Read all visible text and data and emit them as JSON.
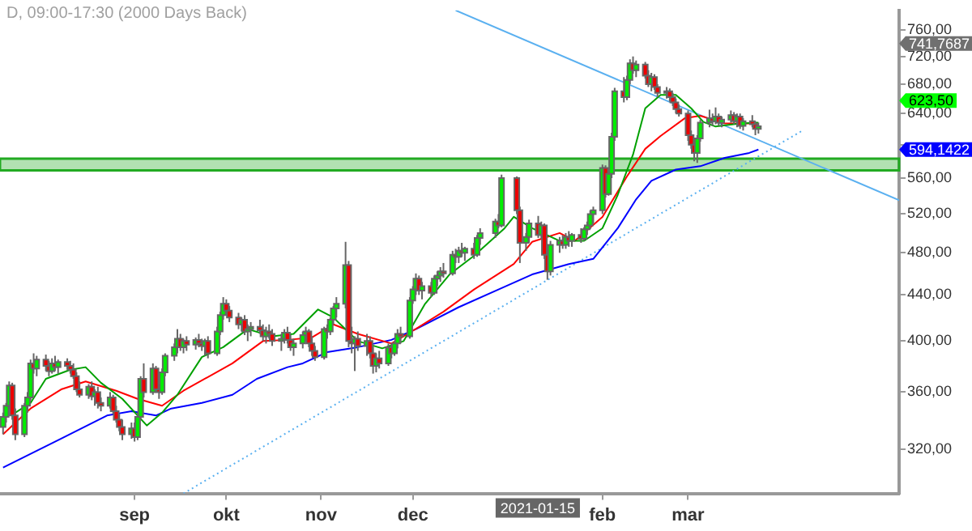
{
  "chart_data": {
    "type": "candlestick",
    "title": "D, 09:00-17:30 (2000 Days Back)",
    "log": true,
    "marker": "none",
    "grid": false,
    "legend": false,
    "xlim": [
      "2020-07-19",
      "2021-05-09"
    ],
    "xticks": [
      {
        "value": "2020-09-01",
        "label": "sep"
      },
      {
        "value": "2020-10-01",
        "label": "okt"
      },
      {
        "value": "2020-11-01",
        "label": "nov"
      },
      {
        "value": "2020-12-01",
        "label": "dec"
      },
      {
        "value": "2021-02-01",
        "label": "feb"
      },
      {
        "value": "2021-03-01",
        "label": "mar"
      }
    ],
    "ylim": [
      292,
      792
    ],
    "yticks": [
      {
        "value": 320,
        "label": "320,00"
      },
      {
        "value": 360,
        "label": "360,00"
      },
      {
        "value": 400,
        "label": "400,00"
      },
      {
        "value": 440,
        "label": "440,00"
      },
      {
        "value": 480,
        "label": "480,00"
      },
      {
        "value": 520,
        "label": "520,00"
      },
      {
        "value": 560,
        "label": "560,00"
      },
      {
        "value": 600,
        "label": null
      },
      {
        "value": 640,
        "label": "640,00"
      },
      {
        "value": 680,
        "label": "680,00"
      },
      {
        "value": 720,
        "label": "720,00"
      },
      {
        "value": 760,
        "label": "760,00"
      }
    ],
    "x": [
      "2020-07-20",
      "2020-07-21",
      "2020-07-22",
      "2020-07-23",
      "2020-07-24",
      "2020-07-27",
      "2020-07-28",
      "2020-07-29",
      "2020-07-30",
      "2020-07-31",
      "2020-08-03",
      "2020-08-04",
      "2020-08-05",
      "2020-08-06",
      "2020-08-07",
      "2020-08-10",
      "2020-08-11",
      "2020-08-12",
      "2020-08-13",
      "2020-08-14",
      "2020-08-17",
      "2020-08-18",
      "2020-08-19",
      "2020-08-20",
      "2020-08-21",
      "2020-08-24",
      "2020-08-25",
      "2020-08-26",
      "2020-08-27",
      "2020-08-28",
      "2020-08-31",
      "2020-09-01",
      "2020-09-02",
      "2020-09-03",
      "2020-09-04",
      "2020-09-07",
      "2020-09-08",
      "2020-09-09",
      "2020-09-10",
      "2020-09-11",
      "2020-09-14",
      "2020-09-15",
      "2020-09-16",
      "2020-09-17",
      "2020-09-18",
      "2020-09-21",
      "2020-09-22",
      "2020-09-23",
      "2020-09-24",
      "2020-09-25",
      "2020-09-28",
      "2020-09-29",
      "2020-09-30",
      "2020-10-01",
      "2020-10-02",
      "2020-10-05",
      "2020-10-06",
      "2020-10-07",
      "2020-10-08",
      "2020-10-09",
      "2020-10-12",
      "2020-10-13",
      "2020-10-14",
      "2020-10-15",
      "2020-10-16",
      "2020-10-19",
      "2020-10-20",
      "2020-10-21",
      "2020-10-22",
      "2020-10-23",
      "2020-10-26",
      "2020-10-27",
      "2020-10-28",
      "2020-10-29",
      "2020-10-30",
      "2020-11-02",
      "2020-11-03",
      "2020-11-04",
      "2020-11-05",
      "2020-11-06",
      "2020-11-09",
      "2020-11-10",
      "2020-11-11",
      "2020-11-12",
      "2020-11-13",
      "2020-11-16",
      "2020-11-17",
      "2020-11-18",
      "2020-11-19",
      "2020-11-20",
      "2020-11-23",
      "2020-11-24",
      "2020-11-25",
      "2020-11-26",
      "2020-11-27",
      "2020-11-30",
      "2020-12-01",
      "2020-12-02",
      "2020-12-03",
      "2020-12-04",
      "2020-12-07",
      "2020-12-08",
      "2020-12-09",
      "2020-12-10",
      "2020-12-11",
      "2020-12-14",
      "2020-12-15",
      "2020-12-16",
      "2020-12-17",
      "2020-12-18",
      "2020-12-21",
      "2020-12-22",
      "2020-12-23",
      "2020-12-28",
      "2020-12-29",
      "2020-12-30",
      "2021-01-04",
      "2021-01-05",
      "2021-01-07",
      "2021-01-08",
      "2021-01-11",
      "2021-01-12",
      "2021-01-13",
      "2021-01-14",
      "2021-01-15",
      "2021-01-18",
      "2021-01-19",
      "2021-01-20",
      "2021-01-21",
      "2021-01-22",
      "2021-01-25",
      "2021-01-26",
      "2021-01-27",
      "2021-01-28",
      "2021-01-29",
      "2021-02-01",
      "2021-02-02",
      "2021-02-03",
      "2021-02-04",
      "2021-02-05",
      "2021-02-08",
      "2021-02-09",
      "2021-02-10",
      "2021-02-11",
      "2021-02-12",
      "2021-02-15",
      "2021-02-16",
      "2021-02-17",
      "2021-02-18",
      "2021-02-19",
      "2021-02-22",
      "2021-02-23",
      "2021-02-24",
      "2021-02-25",
      "2021-02-26",
      "2021-03-01",
      "2021-03-02",
      "2021-03-03",
      "2021-03-04",
      "2021-03-05",
      "2021-03-08",
      "2021-03-09",
      "2021-03-10",
      "2021-03-11",
      "2021-03-12",
      "2021-03-15",
      "2021-03-16",
      "2021-03-17",
      "2021-03-18",
      "2021-03-19",
      "2021-03-22",
      "2021-03-23",
      "2021-03-24"
    ],
    "ohlc": [
      [
        335,
        345,
        330,
        342
      ],
      [
        342,
        352,
        338,
        350
      ],
      [
        350,
        368,
        348,
        365
      ],
      [
        365,
        367,
        340,
        343
      ],
      [
        343,
        348,
        326,
        330
      ],
      [
        330,
        352,
        328,
        350
      ],
      [
        350,
        360,
        345,
        356
      ],
      [
        356,
        385,
        354,
        382
      ],
      [
        382,
        390,
        374,
        378
      ],
      [
        378,
        388,
        372,
        385
      ],
      [
        385,
        389,
        376,
        380
      ],
      [
        380,
        384,
        372,
        376
      ],
      [
        376,
        386,
        374,
        382
      ],
      [
        382,
        388,
        376,
        379
      ],
      [
        379,
        385,
        374,
        383
      ],
      [
        383,
        386,
        377,
        380
      ],
      [
        380,
        384,
        374,
        377
      ],
      [
        377,
        382,
        370,
        372
      ],
      [
        372,
        375,
        360,
        362
      ],
      [
        362,
        368,
        356,
        358
      ],
      [
        358,
        366,
        355,
        364
      ],
      [
        364,
        368,
        354,
        357
      ],
      [
        357,
        362,
        350,
        360
      ],
      [
        360,
        364,
        348,
        352
      ],
      [
        352,
        356,
        346,
        350
      ],
      [
        350,
        360,
        348,
        356
      ],
      [
        356,
        358,
        344,
        346
      ],
      [
        346,
        350,
        338,
        340
      ],
      [
        340,
        344,
        332,
        335
      ],
      [
        335,
        340,
        326,
        330
      ],
      [
        330,
        338,
        327,
        334
      ],
      [
        334,
        338,
        325,
        328
      ],
      [
        328,
        345,
        326,
        342
      ],
      [
        342,
        372,
        340,
        370
      ],
      [
        370,
        382,
        356,
        360
      ],
      [
        360,
        382,
        358,
        378
      ],
      [
        378,
        380,
        360,
        362
      ],
      [
        362,
        366,
        355,
        360
      ],
      [
        360,
        378,
        358,
        375
      ],
      [
        375,
        390,
        372,
        388
      ],
      [
        388,
        398,
        384,
        395
      ],
      [
        395,
        410,
        390,
        402
      ],
      [
        402,
        406,
        392,
        395
      ],
      [
        395,
        402,
        390,
        400
      ],
      [
        400,
        404,
        392,
        397
      ],
      [
        397,
        403,
        393,
        401
      ],
      [
        401,
        406,
        395,
        398
      ],
      [
        398,
        402,
        392,
        396
      ],
      [
        396,
        402,
        388,
        400
      ],
      [
        400,
        404,
        386,
        390
      ],
      [
        390,
        412,
        388,
        408
      ],
      [
        408,
        425,
        405,
        422
      ],
      [
        422,
        438,
        418,
        432
      ],
      [
        432,
        436,
        422,
        426
      ],
      [
        426,
        430,
        416,
        420
      ],
      [
        420,
        424,
        410,
        414
      ],
      [
        414,
        420,
        408,
        418
      ],
      [
        418,
        422,
        405,
        408
      ],
      [
        408,
        414,
        400,
        410
      ],
      [
        410,
        416,
        404,
        412
      ],
      [
        412,
        418,
        406,
        409
      ],
      [
        409,
        414,
        400,
        404
      ],
      [
        404,
        412,
        398,
        408
      ],
      [
        408,
        414,
        402,
        406
      ],
      [
        406,
        410,
        396,
        400
      ],
      [
        400,
        406,
        392,
        402
      ],
      [
        402,
        410,
        398,
        407
      ],
      [
        407,
        412,
        398,
        401
      ],
      [
        401,
        405,
        392,
        395
      ],
      [
        395,
        402,
        388,
        398
      ],
      [
        398,
        408,
        394,
        405
      ],
      [
        405,
        412,
        400,
        408
      ],
      [
        408,
        410,
        395,
        398
      ],
      [
        398,
        404,
        388,
        392
      ],
      [
        392,
        396,
        384,
        387
      ],
      [
        387,
        412,
        385,
        410
      ],
      [
        410,
        414,
        402,
        408
      ],
      [
        408,
        420,
        405,
        418
      ],
      [
        418,
        430,
        414,
        428
      ],
      [
        428,
        438,
        420,
        432
      ],
      [
        432,
        491,
        428,
        468
      ],
      [
        468,
        472,
        395,
        400
      ],
      [
        400,
        412,
        390,
        398
      ],
      [
        398,
        404,
        376,
        402
      ],
      [
        402,
        408,
        392,
        396
      ],
      [
        396,
        406,
        388,
        400
      ],
      [
        400,
        404,
        386,
        390
      ],
      [
        390,
        396,
        374,
        380
      ],
      [
        380,
        390,
        375,
        386
      ],
      [
        386,
        392,
        378,
        382
      ],
      [
        382,
        398,
        380,
        395
      ],
      [
        395,
        398,
        386,
        390
      ],
      [
        390,
        400,
        388,
        398
      ],
      [
        398,
        410,
        394,
        406
      ],
      [
        406,
        412,
        398,
        404
      ],
      [
        404,
        438,
        402,
        435
      ],
      [
        435,
        448,
        432,
        445
      ],
      [
        445,
        460,
        440,
        455
      ],
      [
        455,
        458,
        440,
        444
      ],
      [
        444,
        452,
        436,
        448
      ],
      [
        448,
        452,
        438,
        442
      ],
      [
        442,
        458,
        440,
        455
      ],
      [
        455,
        462,
        448,
        458
      ],
      [
        458,
        466,
        452,
        462
      ],
      [
        462,
        470,
        456,
        460
      ],
      [
        460,
        482,
        458,
        478
      ],
      [
        478,
        484,
        470,
        476
      ],
      [
        476,
        486,
        470,
        482
      ],
      [
        482,
        490,
        476,
        480
      ],
      [
        480,
        486,
        472,
        484
      ],
      [
        484,
        490,
        474,
        478
      ],
      [
        478,
        498,
        476,
        495
      ],
      [
        495,
        505,
        488,
        500
      ],
      [
        500,
        515,
        495,
        512
      ],
      [
        512,
        520,
        505,
        508
      ],
      [
        508,
        564,
        506,
        560
      ],
      [
        560,
        562,
        520,
        524
      ],
      [
        524,
        528,
        470,
        490
      ],
      [
        490,
        500,
        482,
        496
      ],
      [
        496,
        514,
        490,
        510
      ],
      [
        510,
        518,
        495,
        498
      ],
      [
        498,
        512,
        494,
        508
      ],
      [
        508,
        510,
        474,
        478
      ],
      [
        478,
        482,
        454,
        462
      ],
      [
        462,
        492,
        458,
        488
      ],
      [
        488,
        496,
        480,
        492
      ],
      [
        492,
        498,
        484,
        488
      ],
      [
        488,
        500,
        484,
        496
      ],
      [
        496,
        502,
        486,
        492
      ],
      [
        492,
        500,
        486,
        498
      ],
      [
        498,
        505,
        490,
        494
      ],
      [
        494,
        506,
        492,
        504
      ],
      [
        504,
        512,
        498,
        508
      ],
      [
        508,
        524,
        504,
        520
      ],
      [
        520,
        528,
        510,
        524
      ],
      [
        524,
        576,
        520,
        572
      ],
      [
        572,
        575,
        538,
        542
      ],
      [
        542,
        568,
        540,
        565
      ],
      [
        565,
        615,
        560,
        610
      ],
      [
        610,
        675,
        605,
        670
      ],
      [
        670,
        690,
        655,
        662
      ],
      [
        662,
        692,
        658,
        686
      ],
      [
        686,
        716,
        680,
        710
      ],
      [
        710,
        720,
        695,
        700
      ],
      [
        700,
        714,
        690,
        708
      ],
      [
        708,
        712,
        688,
        692
      ],
      [
        692,
        700,
        676,
        680
      ],
      [
        680,
        696,
        670,
        690
      ],
      [
        690,
        694,
        672,
        676
      ],
      [
        676,
        680,
        662,
        668
      ],
      [
        668,
        676,
        660,
        670
      ],
      [
        670,
        674,
        656,
        662
      ],
      [
        662,
        668,
        650,
        655
      ],
      [
        655,
        660,
        640,
        646
      ],
      [
        646,
        652,
        636,
        640
      ],
      [
        640,
        644,
        605,
        612
      ],
      [
        612,
        618,
        595,
        600
      ],
      [
        600,
        604,
        580,
        590
      ],
      [
        590,
        612,
        578,
        608
      ],
      [
        608,
        632,
        604,
        628
      ],
      [
        628,
        645,
        622,
        634
      ],
      [
        634,
        640,
        624,
        630
      ],
      [
        630,
        648,
        626,
        636
      ],
      [
        636,
        640,
        624,
        628
      ],
      [
        628,
        636,
        622,
        632
      ],
      [
        632,
        644,
        628,
        638
      ],
      [
        638,
        642,
        626,
        630
      ],
      [
        630,
        640,
        622,
        636
      ],
      [
        636,
        640,
        620,
        624
      ],
      [
        624,
        634,
        618,
        630
      ],
      [
        630,
        638,
        622,
        626
      ],
      [
        626,
        630,
        612,
        620
      ],
      [
        620,
        628,
        614,
        623.5
      ]
    ],
    "series": [
      {
        "type": "line",
        "color": "#00a000",
        "line_style": "solid",
        "x": [
          "2020-07-24",
          "2020-07-29",
          "2020-08-03",
          "2020-08-11",
          "2020-08-16",
          "2020-08-21",
          "2020-08-28",
          "2020-09-05",
          "2020-09-10",
          "2020-09-15",
          "2020-09-23",
          "2020-09-30",
          "2020-10-08",
          "2020-10-16",
          "2020-10-23",
          "2020-10-31",
          "2020-11-05",
          "2020-11-13",
          "2020-11-21",
          "2020-11-28",
          "2020-12-05",
          "2020-12-13",
          "2020-12-21",
          "2020-12-31",
          "2021-01-03",
          "2021-01-09",
          "2021-01-18",
          "2021-01-26",
          "2021-02-01",
          "2021-02-06",
          "2021-02-11",
          "2021-02-15",
          "2021-02-20",
          "2021-02-25",
          "2021-03-02",
          "2021-03-06",
          "2021-03-10",
          "2021-03-18",
          "2021-03-24"
        ],
        "values": [
          345,
          352,
          370,
          377,
          379,
          367,
          355,
          336,
          345,
          358,
          387,
          395,
          410,
          404,
          406,
          427,
          420,
          400,
          394,
          400,
          432,
          459,
          477,
          505,
          517,
          505,
          492,
          492,
          505,
          541,
          588,
          647,
          665,
          665,
          647,
          629,
          623,
          627,
          628
        ]
      },
      {
        "type": "line",
        "color": "#ff0000",
        "line_style": "solid",
        "x": [
          "2020-07-20",
          "2020-07-29",
          "2020-08-08",
          "2020-08-16",
          "2020-08-26",
          "2020-09-02",
          "2020-09-10",
          "2020-09-17",
          "2020-10-03",
          "2020-10-13",
          "2020-10-21",
          "2020-10-29",
          "2020-11-05",
          "2020-11-13",
          "2020-11-24",
          "2020-11-30",
          "2020-12-11",
          "2020-12-21",
          "2021-01-03",
          "2021-01-09",
          "2021-01-18",
          "2021-01-23",
          "2021-02-01",
          "2021-02-09",
          "2021-02-15",
          "2021-02-20",
          "2021-02-28",
          "2021-03-05",
          "2021-03-13",
          "2021-03-21",
          "2021-03-24"
        ],
        "values": [
          330,
          348,
          362,
          368,
          361,
          355,
          350,
          361,
          382,
          400,
          401,
          403,
          414,
          406,
          398,
          407,
          425,
          445,
          469,
          491,
          500,
          492,
          517,
          562,
          595,
          611,
          634,
          637,
          627,
          627,
          626
        ]
      },
      {
        "type": "line",
        "color": "#0000ff",
        "line_style": "solid",
        "x": [
          "2020-07-20",
          "2020-08-08",
          "2020-08-23",
          "2020-08-31",
          "2020-09-08",
          "2020-09-13",
          "2020-09-23",
          "2020-10-03",
          "2020-10-11",
          "2020-10-21",
          "2020-10-26",
          "2020-11-03",
          "2020-11-13",
          "2020-11-24",
          "2020-12-02",
          "2020-12-16",
          "2020-12-29",
          "2021-01-09",
          "2021-01-21",
          "2021-01-29",
          "2021-02-06",
          "2021-02-12",
          "2021-02-17",
          "2021-02-25",
          "2021-03-05",
          "2021-03-13",
          "2021-03-21",
          "2021-03-24"
        ],
        "values": [
          308,
          327,
          343,
          346,
          343,
          348,
          352,
          358,
          370,
          379,
          382,
          391,
          395,
          401,
          410,
          429,
          445,
          459,
          469,
          474,
          505,
          536,
          557,
          570,
          574,
          584,
          590,
          594.1422
        ]
      },
      {
        "type": "line",
        "color": "#5ab0f0",
        "line_style": "solid",
        "x": [
          "2020-12-15",
          "2021-05-09"
        ],
        "values": [
          792,
          535
        ]
      },
      {
        "type": "line",
        "color": "#5ab0f0",
        "line_style": "dotted",
        "x": [
          "2020-09-17",
          "2021-04-07"
        ],
        "values": [
          292,
          617
        ]
      }
    ],
    "bands": [
      {
        "axis": "y",
        "from": 569,
        "to": 583,
        "color": "#22aa22"
      }
    ],
    "annotations": [
      "741,7687",
      "623,50",
      "594,1422",
      "2021-01-15"
    ]
  }
}
